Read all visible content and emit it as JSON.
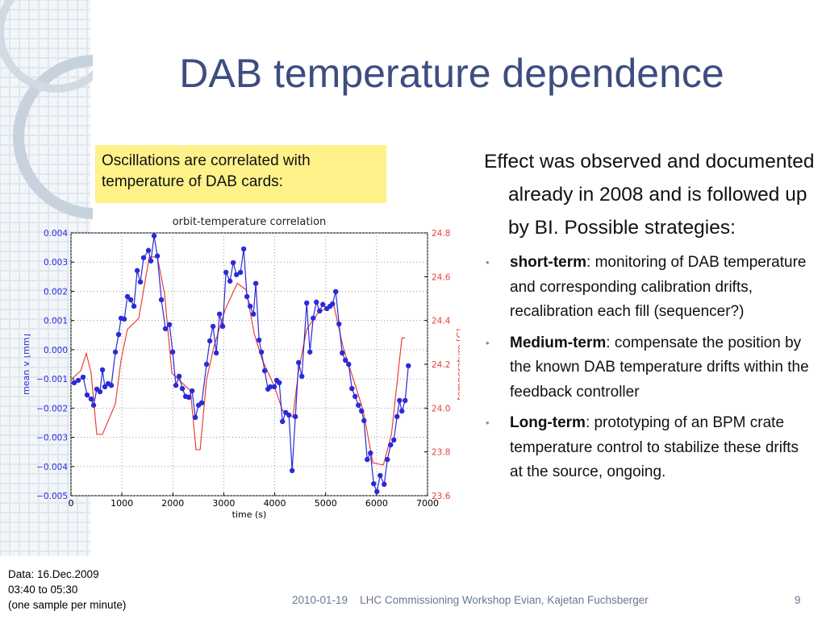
{
  "title": "DAB temperature dependence",
  "callout": "Oscillations are correlated with temperature of DAB cards:",
  "body": {
    "intro": "Effect was observed and documented already in 2008 and is followed up by BI. Possible strategies:",
    "bullets": [
      {
        "term": "short-term",
        "text": ": monitoring of DAB temperature and corresponding calibration drifts, recalibration each fill (sequencer?)"
      },
      {
        "term": "Medium-term",
        "text": ": compensate the position by the known DAB temperature drifts within the feedback controller"
      },
      {
        "term": "Long-term",
        "text": ": prototyping of an BPM crate temperature control to stabilize these drifts at the source, ongoing."
      }
    ]
  },
  "note": [
    "Data: 16.Dec.2009",
    "03:40 to 05:30",
    "(one sample per minute)"
  ],
  "footer": {
    "date": "2010-01-19",
    "event": "LHC Commissioning Workshop Evian, Kajetan Fuchsberger",
    "page": "9"
  },
  "chart_data": {
    "type": "line",
    "title": "orbit-temperature correlation",
    "xlabel": "time (s)",
    "ylabel": "mean V [mm]",
    "y2label": "temperature [C]",
    "xlim": [
      0,
      7000
    ],
    "xticks": [
      0,
      1000,
      2000,
      3000,
      4000,
      5000,
      6000,
      7000
    ],
    "ylim": [
      -0.005,
      0.004
    ],
    "yticks": [
      {
        "value": -0.005,
        "label": "−0.005"
      },
      {
        "value": -0.004,
        "label": "−0.004"
      },
      {
        "value": -0.003,
        "label": "−0.003"
      },
      {
        "value": -0.002,
        "label": "−0.002"
      },
      {
        "value": -0.001,
        "label": "−0.001"
      },
      {
        "value": 0,
        "label": "0.000"
      },
      0.001,
      0.002,
      0.003,
      0.004
    ],
    "y2lim": [
      23.6,
      24.8
    ],
    "y2ticks": [
      23.6,
      23.8,
      {
        "value": 24,
        "label": "24.0"
      },
      24.2,
      24.4,
      24.6,
      24.8
    ],
    "grid": true,
    "series": [
      {
        "color": "#2a2ad8",
        "marker": true,
        "x": [
          63,
          143,
          238,
          317,
          396,
          444,
          507,
          570,
          618,
          665,
          729,
          792,
          872,
          935,
          983,
          1046,
          1109,
          1173,
          1236,
          1300,
          1363,
          1426,
          1521,
          1569,
          1632,
          1696,
          1775,
          1854,
          1933,
          1997,
          2060,
          2124,
          2187,
          2250,
          2314,
          2377,
          2441,
          2504,
          2567,
          2662,
          2726,
          2789,
          2853,
          2916,
          2979,
          3043,
          3122,
          3185,
          3249,
          3328,
          3391,
          3455,
          3518,
          3582,
          3629,
          3693,
          3740,
          3803,
          3867,
          3914,
          3993,
          4041,
          4089,
          4152,
          4216,
          4279,
          4342,
          4406,
          4469,
          4533,
          4628,
          4691,
          4755,
          4818,
          4881,
          4945,
          5024,
          5087,
          5135,
          5198,
          5262,
          5325,
          5388,
          5452,
          5515,
          5578,
          5642,
          5705,
          5753,
          5816,
          5880,
          5943,
          6006,
          6070,
          6149,
          6212,
          6276,
          6339,
          6402,
          6450,
          6497,
          6561,
          6624
        ],
        "values": [
          -0.00113,
          -0.00105,
          -0.00094,
          -0.00155,
          -0.00169,
          -0.0019,
          -0.00135,
          -0.00144,
          -0.00069,
          -0.00127,
          -0.00116,
          -0.00122,
          -8e-05,
          0.00052,
          0.00108,
          0.00105,
          0.00182,
          0.00171,
          0.00149,
          0.00271,
          0.00232,
          0.00315,
          0.0034,
          0.00304,
          0.0039,
          0.00321,
          0.00171,
          0.00072,
          0.00086,
          -8e-05,
          -0.00122,
          -0.00091,
          -0.00133,
          -0.0016,
          -0.00163,
          -0.00141,
          -0.00232,
          -0.0019,
          -0.00182,
          -0.0005,
          0.0003,
          0.0008,
          -0.00011,
          0.00122,
          0.0008,
          0.00265,
          0.00235,
          0.00298,
          0.00257,
          0.00265,
          0.00345,
          0.00182,
          0.00149,
          0.00122,
          0.00227,
          0.00033,
          -8e-05,
          -0.00072,
          -0.00135,
          -0.00127,
          -0.00127,
          -0.00105,
          -0.00113,
          -0.00246,
          -0.00215,
          -0.00224,
          -0.00414,
          -0.00229,
          -0.00044,
          -0.00091,
          0.0016,
          -8e-05,
          0.00108,
          0.00163,
          0.00133,
          0.00155,
          0.00141,
          0.00149,
          0.00157,
          0.00199,
          0.00088,
          -0.00011,
          -0.00036,
          -0.0005,
          -0.00133,
          -0.0016,
          -0.0019,
          -0.0021,
          -0.00243,
          -0.00376,
          -0.00354,
          -0.00459,
          -0.00486,
          -0.00431,
          -0.00461,
          -0.00376,
          -0.00326,
          -0.00309,
          -0.00229,
          -0.00174,
          -0.0021,
          -0.00174,
          -0.00055
        ]
      },
      {
        "color": "#e8403c",
        "axis": "y2",
        "marker": false,
        "x": [
          0,
          190,
          301,
          396,
          507,
          618,
          872,
          983,
          1109,
          1331,
          1537,
          1696,
          1838,
          1981,
          2250,
          2345,
          2456,
          2536,
          2662,
          2805,
          3027,
          3265,
          3439,
          3597,
          3756,
          3993,
          4152,
          4358,
          4469,
          4628,
          4834,
          5151,
          5341,
          5547,
          5737,
          5927,
          6133,
          6292,
          6497,
          6561
        ],
        "values": [
          24.13,
          24.17,
          24.25,
          24.16,
          23.88,
          23.88,
          24.02,
          24.22,
          24.36,
          24.41,
          24.69,
          24.69,
          24.52,
          24.16,
          24.1,
          24.08,
          23.81,
          23.81,
          24.13,
          24.28,
          24.45,
          24.57,
          24.54,
          24.34,
          24.22,
          24.1,
          23.99,
          23.96,
          24.17,
          24.36,
          24.43,
          24.48,
          24.28,
          24.13,
          23.99,
          23.75,
          23.74,
          23.88,
          24.32,
          24.32
        ]
      }
    ]
  }
}
